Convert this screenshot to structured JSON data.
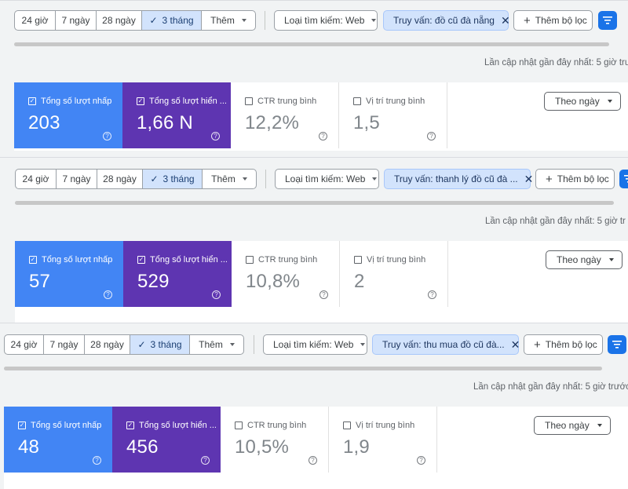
{
  "panels": [
    {
      "ranges": [
        "24 giờ",
        "7 ngày",
        "28 ngày",
        "3 tháng",
        "Thêm"
      ],
      "selected_range": "3 tháng",
      "search_type": "Loại tìm kiếm: Web",
      "query_filter": "Truy vấn: đồ cũ đà nẵng",
      "add_filter": "Thêm bộ lọc",
      "updated": "Lần cập nhật gần đây nhất: 5 giờ trư",
      "metrics": [
        {
          "label": "Tổng số lượt nhấp",
          "value": "203"
        },
        {
          "label": "Tổng số lượt hiển ...",
          "value": "1,66 N"
        },
        {
          "label": "CTR trung bình",
          "value": "12,2%"
        },
        {
          "label": "Vị trí trung bình",
          "value": "1,5"
        }
      ],
      "sort": "Theo ngày"
    },
    {
      "ranges": [
        "24 giờ",
        "7 ngày",
        "28 ngày",
        "3 tháng",
        "Thêm"
      ],
      "selected_range": "3 tháng",
      "search_type": "Loại tìm kiếm: Web",
      "query_filter": "Truy vấn: thanh lý đồ cũ đà ...",
      "add_filter": "Thêm bộ lọc",
      "updated": "Lần cập nhật gần đây nhất: 5 giờ tr",
      "metrics": [
        {
          "label": "Tổng số lượt nhấp",
          "value": "57"
        },
        {
          "label": "Tổng số lượt hiển ...",
          "value": "529"
        },
        {
          "label": "CTR trung bình",
          "value": "10,8%"
        },
        {
          "label": "Vị trí trung bình",
          "value": "2"
        }
      ],
      "sort": "Theo ngày"
    },
    {
      "ranges": [
        "24 giờ",
        "7 ngày",
        "28 ngày",
        "3 tháng",
        "Thêm"
      ],
      "selected_range": "3 tháng",
      "search_type": "Loại tìm kiếm: Web",
      "query_filter": "Truy vấn: thu mua đồ cũ đà...",
      "add_filter": "Thêm bộ lọc",
      "updated": "Lần cập nhật gần đây nhất: 5 giờ trước",
      "metrics": [
        {
          "label": "Tổng số lượt nhấp",
          "value": "48"
        },
        {
          "label": "Tổng số lượt hiển ...",
          "value": "456"
        },
        {
          "label": "CTR trung bình",
          "value": "10,5%"
        },
        {
          "label": "Vị trí trung bình",
          "value": "1,9"
        }
      ],
      "sort": "Theo ngày"
    }
  ],
  "colors": {
    "clicks": "#4285f4",
    "impressions": "#5e35b1",
    "selected_range": "#d2e3fc",
    "primary_button": "#1a73e8"
  },
  "icons": [
    "check-icon",
    "caret-down-icon",
    "close-icon",
    "plus-icon",
    "filter-icon",
    "checkbox-icon",
    "help-icon"
  ]
}
